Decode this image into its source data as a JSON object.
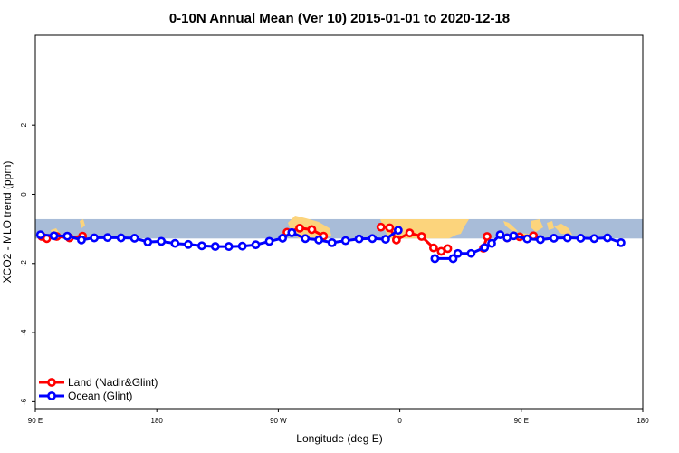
{
  "chart_data": {
    "type": "line",
    "title": "0-10N Annual Mean (Ver 10)   2015-01-01 to 2020-12-18",
    "xlabel": "Longitude (deg E)",
    "ylabel": "XCO2 - MLO trend (ppm)",
    "xlim": [
      90,
      360
    ],
    "ylim": [
      -6.2,
      4.6
    ],
    "x_ticks": [
      90,
      144,
      198,
      252,
      306,
      360
    ],
    "x_tick_labels": [
      "90 E",
      "180",
      "90 W",
      "0",
      "90 E",
      "180"
    ],
    "y_ticks": [
      -6,
      -4,
      -2,
      0,
      2
    ],
    "y_tick_labels": [
      "-6",
      "-4",
      "-2",
      "0",
      "2"
    ],
    "grid": false,
    "legend_position": "bottom-left",
    "map_band": {
      "y_top": -0.72,
      "y_bottom": -1.28,
      "ocean_color": "#a8bcd8",
      "land_color": "#fcd47c"
    },
    "series": [
      {
        "name": "Land (Nadir&Glint)",
        "color": "#ff0000",
        "segments": [
          [
            [
              92.9,
              -1.22
            ],
            [
              95.1,
              -1.28
            ],
            [
              99.5,
              -1.22
            ],
            [
              105.2,
              -1.26
            ],
            [
              111.0,
              -1.21
            ]
          ],
          [
            [
              201.9,
              -1.1
            ],
            [
              207.5,
              -0.98
            ],
            [
              212.9,
              -1.02
            ],
            [
              218.1,
              -1.21
            ]
          ],
          [
            [
              243.6,
              -0.95
            ],
            [
              247.5,
              -0.97
            ],
            [
              250.5,
              -1.32
            ],
            [
              256.4,
              -1.12
            ],
            [
              261.7,
              -1.22
            ],
            [
              267.0,
              -1.55
            ],
            [
              270.4,
              -1.65
            ],
            [
              273.3,
              -1.57
            ]
          ],
          [
            [
              289.2,
              -1.56
            ],
            [
              290.8,
              -1.22
            ]
          ],
          [
            [
              299.7,
              -1.26
            ],
            [
              305.3,
              -1.23
            ],
            [
              311.4,
              -1.2
            ]
          ]
        ]
      },
      {
        "name": "Ocean (Glint)",
        "color": "#0000ff",
        "segments": [
          [
            [
              92.3,
              -1.17
            ],
            [
              98.3,
              -1.2
            ],
            [
              104.2,
              -1.21
            ],
            [
              110.5,
              -1.32
            ],
            [
              116.2,
              -1.26
            ],
            [
              122.1,
              -1.25
            ],
            [
              128.1,
              -1.26
            ],
            [
              134.1,
              -1.27
            ],
            [
              140.0,
              -1.38
            ],
            [
              146.0,
              -1.36
            ],
            [
              152.1,
              -1.42
            ],
            [
              158.0,
              -1.45
            ],
            [
              164.0,
              -1.49
            ],
            [
              170.0,
              -1.51
            ],
            [
              176.0,
              -1.51
            ],
            [
              182.0,
              -1.5
            ],
            [
              188.0,
              -1.46
            ],
            [
              194.0,
              -1.36
            ],
            [
              199.9,
              -1.27
            ],
            [
              204.0,
              -1.11
            ],
            [
              210.0,
              -1.28
            ],
            [
              216.0,
              -1.32
            ],
            [
              221.9,
              -1.4
            ],
            [
              227.9,
              -1.34
            ],
            [
              233.9,
              -1.29
            ],
            [
              239.8,
              -1.28
            ],
            [
              245.7,
              -1.3
            ],
            [
              251.3,
              -1.04
            ]
          ],
          [
            [
              267.6,
              -1.86
            ],
            [
              275.7,
              -1.86
            ],
            [
              277.8,
              -1.71
            ],
            [
              283.7,
              -1.71
            ],
            [
              289.7,
              -1.54
            ],
            [
              292.8,
              -1.42
            ],
            [
              296.6,
              -1.17
            ],
            [
              299.7,
              -1.26
            ],
            [
              302.6,
              -1.2
            ],
            [
              308.6,
              -1.29
            ],
            [
              314.5,
              -1.31
            ],
            [
              320.5,
              -1.27
            ],
            [
              326.5,
              -1.26
            ],
            [
              332.4,
              -1.27
            ],
            [
              338.4,
              -1.28
            ],
            [
              344.3,
              -1.26
            ],
            [
              350.3,
              -1.4
            ]
          ]
        ]
      }
    ]
  }
}
